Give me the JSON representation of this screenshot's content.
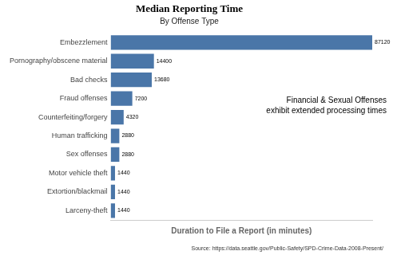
{
  "chart_data": {
    "type": "bar",
    "orientation": "horizontal",
    "title": "Median Reporting Time",
    "subtitle": "By Offense Type",
    "x_label": "Duration to File a Report (in minutes)",
    "annotation": [
      "Financial & Sexual Offenses",
      "exhibit extended processing times"
    ],
    "source": "Source: https://data.seattle.gov/Public-Safety/SPD-Crime-Data-2008-Present/",
    "categories": [
      "Embezzlement",
      "Pornography/obscene material",
      "Bad checks",
      "Fraud offenses",
      "Counterfeiting/forgery",
      "Human trafficking",
      "Sex offenses",
      "Motor vehicle theft",
      "Extortion/blackmail",
      "Larceny-theft"
    ],
    "values": [
      87120,
      14400,
      13680,
      7200,
      4320,
      2880,
      2880,
      1440,
      1440,
      1440
    ],
    "color": "#4a76a8",
    "xlim": [
      0,
      87120
    ],
    "grid": false,
    "tick_labels": "y",
    "data_labels": true
  }
}
